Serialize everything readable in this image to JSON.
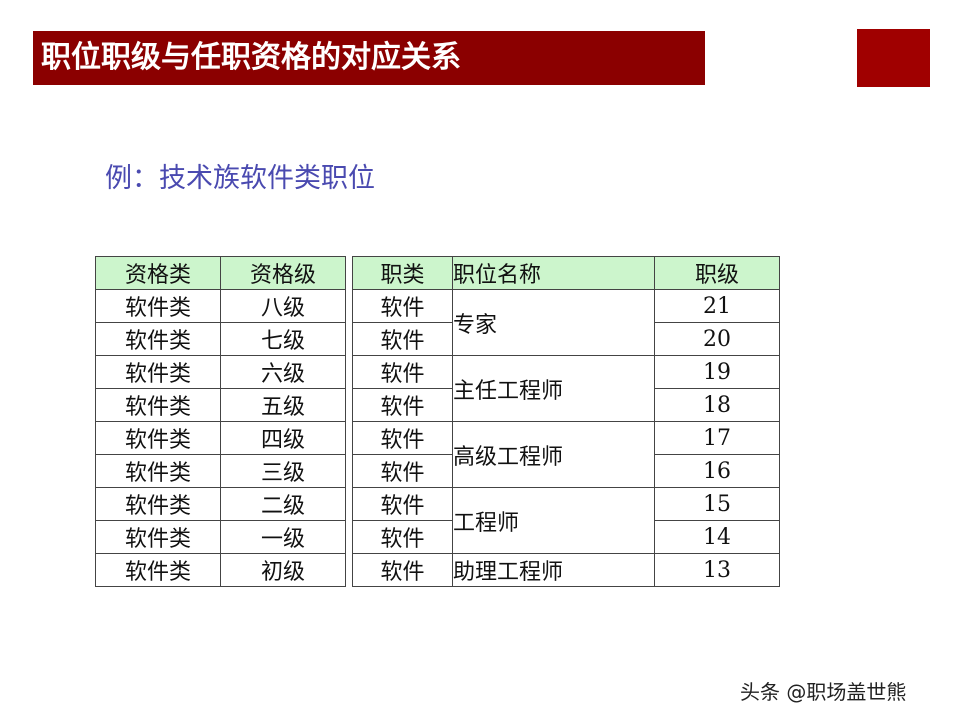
{
  "title": "职位职级与任职资格的对应关系",
  "subtitle": "例：技术族软件类职位",
  "colors": {
    "title_bg": "#8b0000",
    "accent_square": "#a00000",
    "header_bg": "#ccf5cc",
    "subtitle": "#4a4ab0"
  },
  "qual_table": {
    "headers": [
      "资格类",
      "资格级"
    ],
    "rows": [
      [
        "软件类",
        "八级"
      ],
      [
        "软件类",
        "七级"
      ],
      [
        "软件类",
        "六级"
      ],
      [
        "软件类",
        "五级"
      ],
      [
        "软件类",
        "四级"
      ],
      [
        "软件类",
        "三级"
      ],
      [
        "软件类",
        "二级"
      ],
      [
        "软件类",
        "一级"
      ],
      [
        "软件类",
        "初级"
      ]
    ]
  },
  "job_table": {
    "headers": [
      "职类",
      "职位名称",
      "职级"
    ],
    "categories": [
      "软件",
      "软件",
      "软件",
      "软件",
      "软件",
      "软件",
      "软件",
      "软件",
      "软件"
    ],
    "titles": [
      "专家",
      "主任工程师",
      "高级工程师",
      "工程师",
      "助理工程师"
    ],
    "levels": [
      "21",
      "20",
      "19",
      "18",
      "17",
      "16",
      "15",
      "14",
      "13"
    ]
  },
  "watermark": "头条 @职场盖世熊"
}
